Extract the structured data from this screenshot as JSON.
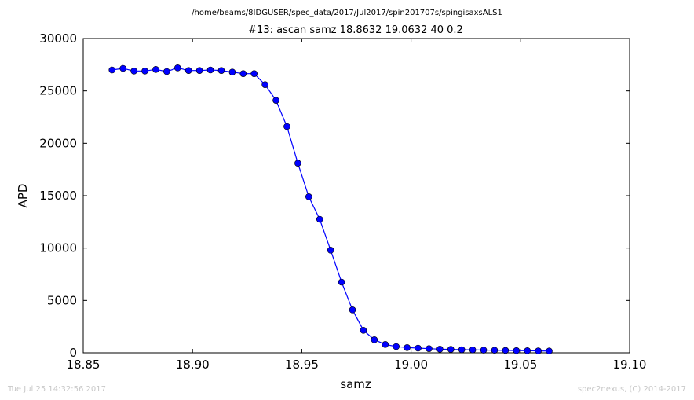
{
  "chart_data": {
    "type": "line",
    "suptitle": "/home/beams/8IDGUSER/spec_data/2017/Jul2017/spin201707s/spingisaxsALS1",
    "title": "#13: ascan  samz 18.8632 19.0632  40 0.2",
    "xlabel": "samz",
    "ylabel": "APD",
    "xlim": [
      18.85,
      19.1
    ],
    "ylim": [
      0,
      30000
    ],
    "xticks": [
      "18.85",
      "18.90",
      "18.95",
      "19.00",
      "19.05",
      "19.10"
    ],
    "yticks": [
      "0",
      "5000",
      "10000",
      "15000",
      "20000",
      "25000",
      "30000"
    ],
    "grid": false,
    "legend": "none",
    "series": [
      {
        "color": "#0000ff",
        "marker": "circle",
        "x": [
          18.8632,
          18.8682,
          18.8732,
          18.8782,
          18.8832,
          18.8882,
          18.8932,
          18.8982,
          18.9032,
          18.9082,
          18.9132,
          18.9182,
          18.9232,
          18.9282,
          18.9332,
          18.9382,
          18.9432,
          18.9482,
          18.9532,
          18.9582,
          18.9632,
          18.9682,
          18.9732,
          18.9782,
          18.9832,
          18.9882,
          18.9932,
          18.9982,
          19.0032,
          19.0082,
          19.0132,
          19.0182,
          19.0232,
          19.0282,
          19.0332,
          19.0382,
          19.0432,
          19.0482,
          19.0532,
          19.0582,
          19.0632
        ],
        "y": [
          27000,
          27150,
          26900,
          26900,
          27050,
          26850,
          27200,
          26950,
          26950,
          27000,
          26950,
          26800,
          26650,
          26650,
          25600,
          24100,
          21600,
          18100,
          14900,
          12750,
          9800,
          6750,
          4100,
          2150,
          1250,
          800,
          600,
          500,
          450,
          400,
          350,
          330,
          300,
          280,
          260,
          250,
          230,
          210,
          200,
          180,
          170
        ]
      }
    ]
  },
  "footer": {
    "timestamp": "Tue Jul 25 14:32:56 2017",
    "credit": "spec2nexus, (C) 2014-2017"
  }
}
